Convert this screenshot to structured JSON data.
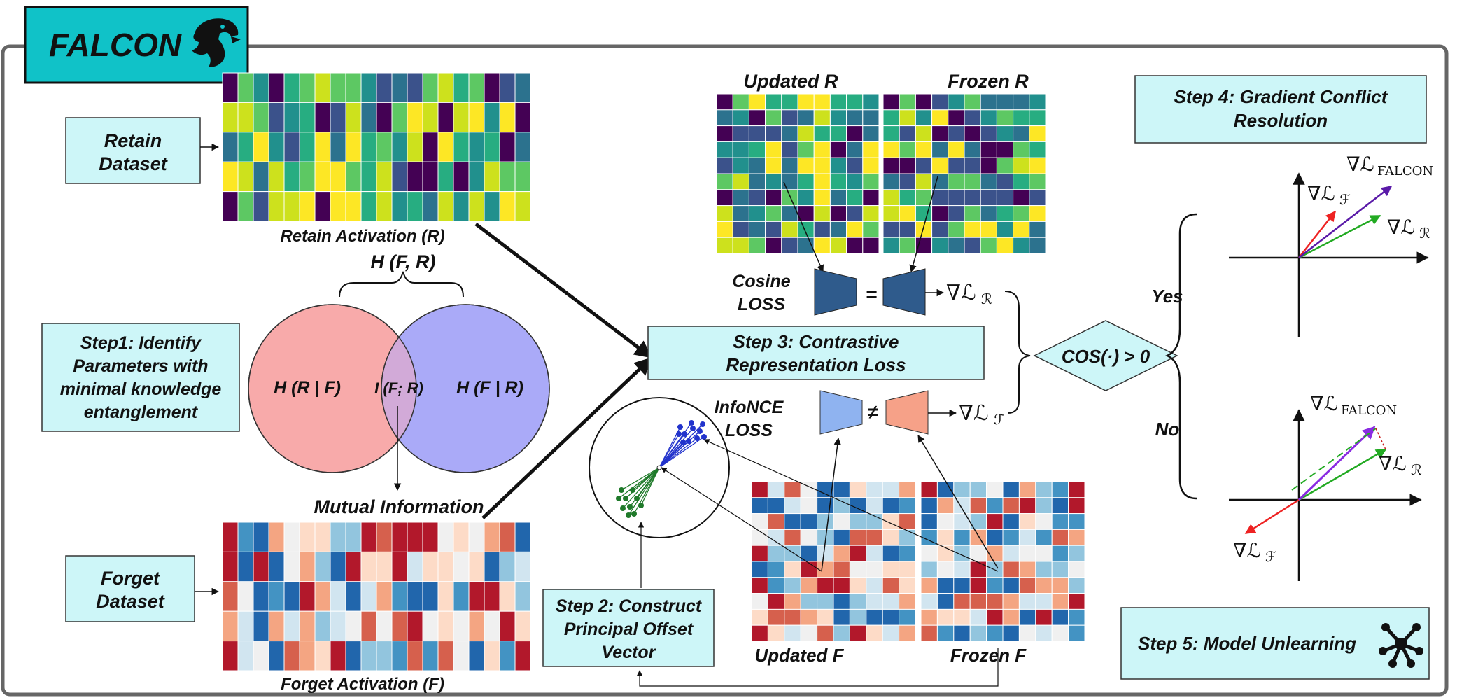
{
  "title": "FALCON",
  "boxes": {
    "retain_dataset": [
      "Retain",
      "Dataset"
    ],
    "forget_dataset": [
      "Forget",
      "Dataset"
    ],
    "step1": [
      "Step1: Identify",
      "Parameters with",
      "minimal knowledge",
      "entanglement"
    ],
    "step2": [
      "Step 2: Construct",
      "Principal Offset",
      "Vector"
    ],
    "step3": [
      "Step 3: Contrastive",
      "Representation Loss"
    ],
    "step4": [
      "Step 4: Gradient Conflict",
      "Resolution"
    ],
    "step5": "Step 5: Model Unlearning"
  },
  "labels": {
    "retain_activation": "Retain Activation (R)",
    "forget_activation": "Forget Activation (F)",
    "joint_entropy": "H (F, R)",
    "h_r_given_f": "H (R | F)",
    "h_f_given_r": "H (F | R)",
    "mutual_info_symbol": "I (F; R)",
    "mutual_information": "Mutual Information",
    "updated_r": "Updated R",
    "frozen_r": "Frozen R",
    "updated_f": "Updated F",
    "frozen_f": "Frozen F",
    "cosine_loss": [
      "Cosine",
      "LOSS"
    ],
    "infonce_loss": [
      "InfoNCE",
      "LOSS"
    ],
    "equals": "=",
    "not_equals": "≠",
    "decision": "COS(·) > 0",
    "yes": "Yes",
    "no": "No"
  },
  "math": {
    "grad_r": "∇ℒ",
    "sub_r": "ℛ",
    "sub_f": "ℱ",
    "sub_falcon": "FALCON"
  },
  "colors": {
    "box_fill": "#cdf6f8",
    "title_fill": "#10c2c8",
    "venn_left": "#f8aaaa",
    "venn_right": "#aaaaf8",
    "encoder_dark": "#2f5b8c",
    "encoder_light": "#8fb3f0",
    "encoder_salmon": "#f6a188",
    "decision_fill": "#cdf6f8"
  },
  "heatmaps": {
    "retain_palette": [
      "#440154",
      "#3b528b",
      "#21908d",
      "#5dc863",
      "#cde11d",
      "#2c728e",
      "#27ad81",
      "#fde725"
    ],
    "forget_palette": [
      "#b2182b",
      "#d6604d",
      "#f4a582",
      "#fddbc7",
      "#f0f0f0",
      "#d1e5f0",
      "#92c5de",
      "#4393c3",
      "#2166ac"
    ]
  }
}
